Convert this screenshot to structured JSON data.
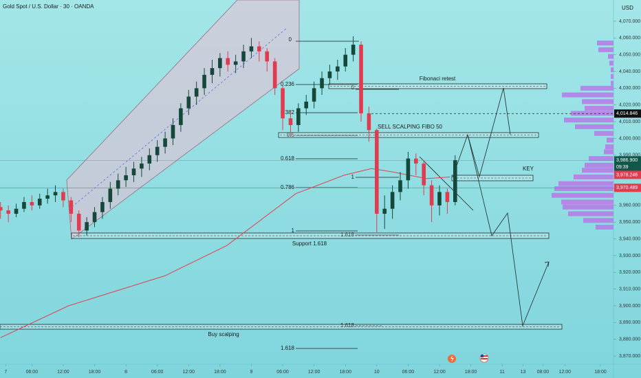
{
  "chart_data": {
    "type": "candlestick",
    "title": "Gold Spot / U.S. Dollar · 30 · OANDA",
    "currency": "USD",
    "up_color": "#15483b",
    "down_color": "#e23a4e",
    "x": [
      0,
      1.5,
      3,
      4.5,
      6,
      7.5,
      9,
      10.5,
      12,
      13.5,
      15,
      16.5,
      18,
      19.5,
      21,
      22.5,
      24,
      25.5,
      27,
      28.5,
      30,
      31.5,
      33,
      34.5,
      36,
      37.5,
      39,
      40.5,
      42,
      43.5,
      45,
      46.5,
      48,
      49.5,
      51,
      52.5,
      54,
      55.5,
      57,
      58.5,
      60,
      61.5,
      63,
      64.5,
      66,
      67.5,
      69,
      70.5,
      72,
      73.5,
      75,
      76.5,
      78,
      79.5,
      81,
      82.5,
      84,
      85.5,
      87
    ],
    "open": [
      3959,
      3957,
      3955,
      3958,
      3962,
      3960,
      3964,
      3966,
      3968,
      3963,
      3955,
      3945,
      3950,
      3956,
      3962,
      3970,
      3975,
      3978,
      3982,
      3985,
      3990,
      3995,
      4000,
      4008,
      4018,
      4025,
      4030,
      4038,
      4042,
      4048,
      4044,
      4046,
      4052,
      4055,
      4052,
      4046,
      4030,
      4012,
      4008,
      4018,
      4022,
      4030,
      4036,
      4040,
      4043,
      4050,
      4056,
      4015,
      4005,
      3955,
      3958,
      3968,
      3975,
      3988,
      3985,
      3972,
      3960,
      3968,
      3962
    ],
    "high": [
      3962,
      3960,
      3961,
      3965,
      3966,
      3967,
      3970,
      3972,
      3970,
      3965,
      3957,
      3953,
      3959,
      3965,
      3974,
      3979,
      3983,
      3986,
      3989,
      3994,
      3999,
      4004,
      4012,
      4021,
      4029,
      4034,
      4042,
      4047,
      4051,
      4052,
      4050,
      4056,
      4060,
      4058,
      4054,
      4048,
      4032,
      4016,
      4021,
      4026,
      4034,
      4040,
      4044,
      4047,
      4054,
      4061,
      4058,
      4019,
      4006,
      3966,
      3972,
      3980,
      3992,
      3991,
      3987,
      3975,
      3972,
      3970,
      3990
    ],
    "low": [
      3952,
      3950,
      3953,
      3956,
      3957,
      3958,
      3961,
      3962,
      3959,
      3950,
      3941,
      3942,
      3947,
      3952,
      3958,
      3966,
      3971,
      3974,
      3977,
      3981,
      3986,
      3991,
      3996,
      4004,
      4014,
      4020,
      4026,
      4033,
      4037,
      4040,
      4039,
      4042,
      4048,
      4046,
      4040,
      4026,
      4005,
      4001,
      4004,
      4014,
      4018,
      4026,
      4032,
      4035,
      4040,
      4046,
      4010,
      3998,
      3944,
      3946,
      3952,
      3963,
      3970,
      3978,
      3966,
      3950,
      3954,
      3955,
      3960
    ],
    "close": [
      3957,
      3955,
      3958,
      3962,
      3960,
      3964,
      3966,
      3968,
      3963,
      3955,
      3945,
      3950,
      3956,
      3962,
      3970,
      3975,
      3978,
      3982,
      3985,
      3990,
      3995,
      4000,
      4008,
      4018,
      4025,
      4030,
      4038,
      4042,
      4048,
      4044,
      4046,
      4052,
      4055,
      4052,
      4046,
      4030,
      4012,
      4008,
      4018,
      4022,
      4030,
      4036,
      4040,
      4043,
      4050,
      4056,
      4015,
      4005,
      3955,
      3958,
      3968,
      3975,
      3988,
      3985,
      3972,
      3960,
      3968,
      3962,
      3987
    ],
    "moving_average": {
      "color": "#e0404f",
      "x": [
        0,
        13,
        31.5,
        43.3,
        56.5,
        65.7,
        71,
        75,
        81.5,
        86
      ],
      "values": [
        3881,
        3900,
        3918,
        3936,
        3967,
        3978,
        3982,
        3980,
        3976,
        3977
      ]
    },
    "volume_profile": {
      "color": "#b878e6",
      "levels": [
        4057,
        4053,
        4049,
        4045,
        4041,
        4037,
        4033,
        4030,
        4026,
        4022,
        4018,
        4015,
        4011,
        4007,
        4003,
        3999,
        3995,
        3992,
        3988,
        3984,
        3981,
        3977,
        3973,
        3970,
        3966,
        3962,
        3959,
        3955,
        3951,
        3947
      ],
      "sizes": [
        24,
        22,
        8,
        6,
        4,
        4,
        4,
        48,
        75,
        46,
        42,
        62,
        72,
        56,
        28,
        10,
        12,
        14,
        36,
        42,
        46,
        58,
        80,
        86,
        90,
        76,
        74,
        66,
        44,
        26
      ]
    },
    "xlim": [
      -0.1,
      117.3
    ],
    "ylim": [
      3865.1,
      4082.7
    ],
    "xticks": [
      {
        "value": 1,
        "label": "7"
      },
      {
        "value": 6,
        "label": "06:00"
      },
      {
        "value": 12,
        "label": "12:00"
      },
      {
        "value": 18,
        "label": "18:00"
      },
      {
        "value": 24,
        "label": "8"
      },
      {
        "value": 30,
        "label": "06:00"
      },
      {
        "value": 36,
        "label": "12:00"
      },
      {
        "value": 42,
        "label": "18:00"
      },
      {
        "value": 48,
        "label": "9"
      },
      {
        "value": 54,
        "label": "06:00"
      },
      {
        "value": 60,
        "label": "12:00"
      },
      {
        "value": 66,
        "label": "18:00"
      },
      {
        "value": 72,
        "label": "10"
      },
      {
        "value": 78,
        "label": "06:00"
      },
      {
        "value": 84,
        "label": "12:00"
      },
      {
        "value": 90,
        "label": "18:00"
      },
      {
        "value": 96,
        "label": "11"
      },
      {
        "value": 100,
        "label": "13"
      },
      {
        "value": 103.8,
        "label": "08:00"
      },
      {
        "value": 108,
        "label": "12:00"
      },
      {
        "value": 114.8,
        "label": "18:00"
      }
    ],
    "yticks": [
      {
        "value": 4070,
        "label": "4,070.000"
      },
      {
        "value": 4060,
        "label": "4,060.000"
      },
      {
        "value": 4050,
        "label": "4,050.000"
      },
      {
        "value": 4040,
        "label": "4,040.000"
      },
      {
        "value": 4030,
        "label": "4,030.000"
      },
      {
        "value": 4020,
        "label": "4,020.000"
      },
      {
        "value": 4010,
        "label": "4,010.000"
      },
      {
        "value": 4000,
        "label": "4,000.000"
      },
      {
        "value": 3990,
        "label": "3,990.000"
      },
      {
        "value": 3980,
        "label": "3,980.000"
      },
      {
        "value": 3970,
        "label": "3,970.000"
      },
      {
        "value": 3960,
        "label": "3,960.000"
      },
      {
        "value": 3950,
        "label": "3,950.000"
      },
      {
        "value": 3940,
        "label": "3,940.000"
      },
      {
        "value": 3930,
        "label": "3,930.000"
      },
      {
        "value": 3920,
        "label": "3,920.000"
      },
      {
        "value": 3910,
        "label": "3,910.000"
      },
      {
        "value": 3900,
        "label": "3,900.000"
      },
      {
        "value": 3890,
        "label": "3,890.000"
      },
      {
        "value": 3880,
        "label": "3,880.000"
      },
      {
        "value": 3870,
        "label": "3,870.000"
      }
    ],
    "price_labels": [
      {
        "value": 4014.846,
        "label": "4,014.846",
        "color": "#111111"
      },
      {
        "value": 3986.9,
        "label": "3,986.900",
        "color": "#12584a"
      },
      {
        "value": 3978.246,
        "label": "3,978.246",
        "color": "#e23a4e"
      },
      {
        "value": 3970.489,
        "label": "3,970.489",
        "color": "#e23a4e"
      }
    ],
    "countdown": "09:39",
    "drawings": {
      "fib_a": [
        "0",
        "0.236",
        "0.382",
        "0.5",
        "0.618",
        "0.786",
        "1",
        "1.618"
      ],
      "fib_b": [
        "0",
        "1",
        "1.618",
        "1.618"
      ],
      "zones": [
        "Fibonaci retest",
        "SELL SCALPING FIBO 50",
        "KEY",
        "Support 1.618",
        "Buy scalping"
      ]
    }
  }
}
